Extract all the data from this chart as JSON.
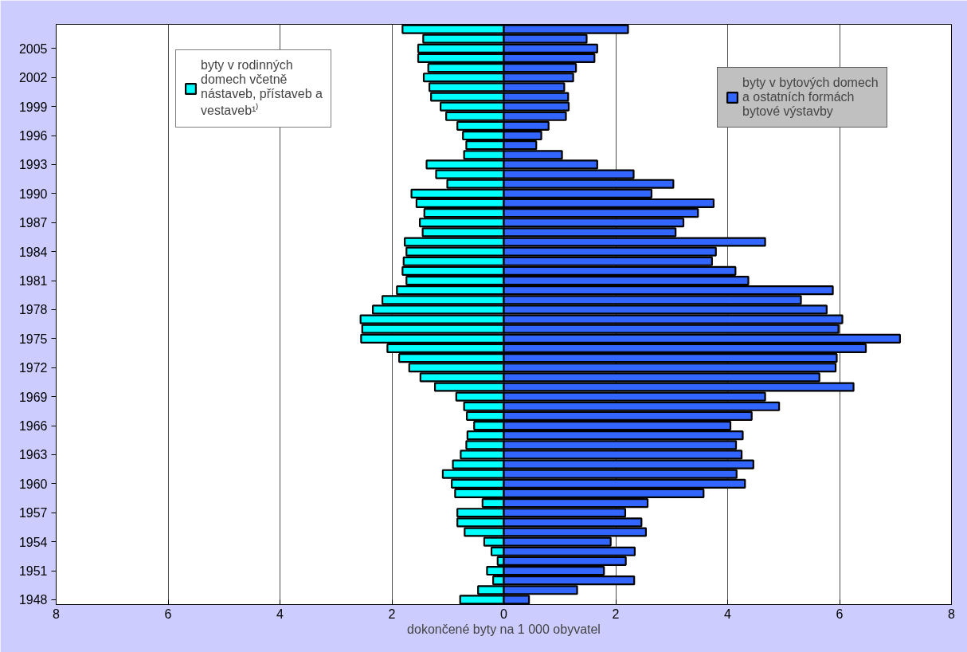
{
  "chart_data": {
    "type": "bar",
    "orientation": "horizontal",
    "stacked": true,
    "xlabel": "dokončené byty na 1 000 obyvatel",
    "categories": [
      null,
      null,
      "2005",
      null,
      null,
      "2002",
      null,
      null,
      "1999",
      null,
      null,
      "1996",
      null,
      null,
      "1993",
      null,
      null,
      "1990",
      null,
      null,
      "1987",
      null,
      null,
      "1984",
      null,
      null,
      "1981",
      null,
      null,
      "1978",
      null,
      null,
      "1975",
      null,
      null,
      "1972",
      null,
      null,
      "1969",
      null,
      null,
      "1966",
      null,
      null,
      "1963",
      null,
      null,
      "1960",
      null,
      null,
      "1957",
      null,
      null,
      "1954",
      null,
      null,
      "1951",
      null,
      null,
      "1948"
    ],
    "series": [
      {
        "name": "byty v rodinných domech včetně nástaveb, přístaveb a vestaveb¹⁾",
        "color": "#00ffff",
        "values": [
          -1.81,
          -1.44,
          -1.53,
          -1.53,
          -1.35,
          -1.43,
          -1.33,
          -1.3,
          -1.13,
          -1.03,
          -0.83,
          -0.73,
          -0.67,
          -0.71,
          -1.38,
          -1.21,
          -1.01,
          -1.65,
          -1.56,
          -1.42,
          -1.5,
          -1.45,
          -1.77,
          -1.74,
          -1.79,
          -1.81,
          -1.74,
          -1.91,
          -2.17,
          -2.34,
          -2.56,
          -2.53,
          -2.55,
          -2.08,
          -1.87,
          -1.69,
          -1.49,
          -1.23,
          -0.85,
          -0.71,
          -0.66,
          -0.53,
          -0.65,
          -0.67,
          -0.77,
          -0.91,
          -1.09,
          -0.93,
          -0.87,
          -0.38,
          -0.83,
          -0.83,
          -0.7,
          -0.35,
          -0.22,
          -0.11,
          -0.3,
          -0.19,
          -0.46,
          -0.78
        ]
      },
      {
        "name": "byty v bytových domech a ostatních formách bytové výstavby",
        "color": "#3366ff",
        "values": [
          2.22,
          1.48,
          1.67,
          1.62,
          1.29,
          1.24,
          1.08,
          1.15,
          1.16,
          1.11,
          0.8,
          0.67,
          0.58,
          1.04,
          1.67,
          2.32,
          3.03,
          2.64,
          3.75,
          3.47,
          3.21,
          3.07,
          4.67,
          3.79,
          3.72,
          4.14,
          4.37,
          5.88,
          5.31,
          5.77,
          6.05,
          5.98,
          7.08,
          6.47,
          5.95,
          5.93,
          5.64,
          6.25,
          4.67,
          4.92,
          4.43,
          4.05,
          4.27,
          4.15,
          4.25,
          4.46,
          4.16,
          4.31,
          3.57,
          2.57,
          2.17,
          2.46,
          2.54,
          1.91,
          2.34,
          2.18,
          1.79,
          2.33,
          1.31,
          0.45
        ]
      }
    ],
    "xlim": [
      -8,
      8
    ],
    "xticks": [
      {
        "value": -8,
        "label": "8"
      },
      {
        "value": -6,
        "label": "6"
      },
      {
        "value": -4,
        "label": "4"
      },
      {
        "value": -2,
        "label": "2"
      },
      0,
      2,
      4,
      6,
      8
    ],
    "grid": "x",
    "legend": "top"
  }
}
